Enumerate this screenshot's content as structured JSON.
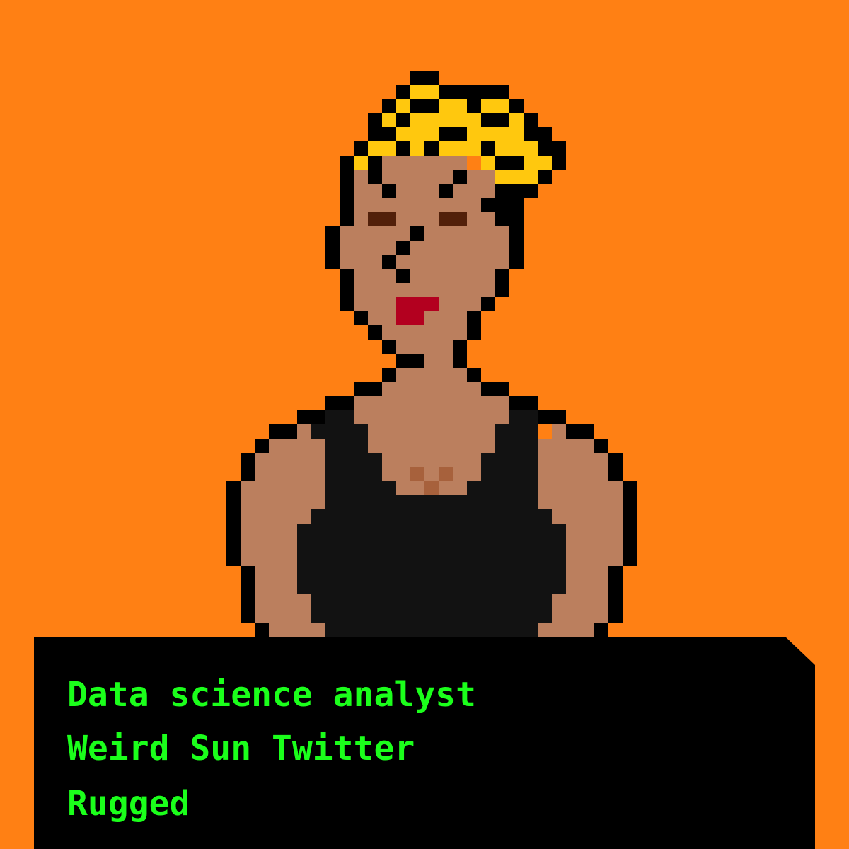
{
  "background_color": "#FF8014",
  "avatar": {
    "description_icon": "pixel-portrait-icon",
    "colors": {
      "outline": "#000000",
      "hair": "#FFC80E",
      "skin": "#BB7F5E",
      "eyes": "#52200A",
      "lips": "#B3001F",
      "top": "#121212",
      "chest_mark": "#A7613C"
    }
  },
  "caption": {
    "panel_color": "#000000",
    "text_color": "#1BFF1B",
    "lines": [
      "Data science analyst",
      "Weird Sun Twitter",
      "Rugged"
    ]
  }
}
